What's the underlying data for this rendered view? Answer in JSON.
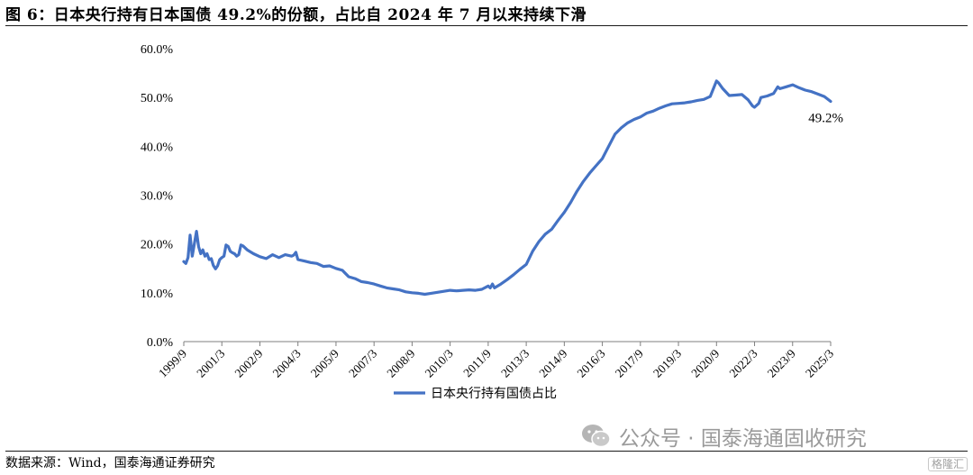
{
  "title": "图 6：日本央行持有日本国债 49.2%的份额，占比自 2024 年 7 月以来持续下滑",
  "source": "数据来源：Wind，国泰海通证券研究",
  "watermark": {
    "text": "公众号 · 国泰海通固收研究",
    "icon": "wechat-icon"
  },
  "corner_logo": "格隆汇",
  "colors": {
    "line": "#4472C4",
    "axis": "#7f7f7f"
  },
  "chart_data": {
    "type": "line",
    "title": "",
    "xlabel": "",
    "ylabel": "",
    "ylim": [
      0,
      60
    ],
    "y_unit": "%",
    "y_ticks": [
      "0.0%",
      "10.0%",
      "20.0%",
      "30.0%",
      "40.0%",
      "50.0%",
      "60.0%"
    ],
    "x_range": [
      "1999/9",
      "2025/3"
    ],
    "x_ticks": [
      "1999/9",
      "2001/3",
      "2002/9",
      "2004/3",
      "2005/9",
      "2007/3",
      "2008/9",
      "2010/3",
      "2011/9",
      "2013/3",
      "2014/9",
      "2016/3",
      "2017/9",
      "2019/3",
      "2020/9",
      "2022/3",
      "2023/9",
      "2025/3"
    ],
    "grid": false,
    "legend": {
      "position": "bottom-center",
      "entries": [
        "日本央行持有国债占比"
      ]
    },
    "annotation": {
      "text": "49.2%",
      "x": "2025/3",
      "y": 49.2
    },
    "series": [
      {
        "name": "日本央行持有国债占比",
        "points": [
          [
            "1999/9",
            16.4
          ],
          [
            "1999/10",
            16.0
          ],
          [
            "1999/11",
            17.2
          ],
          [
            "1999/12",
            21.8
          ],
          [
            "2000/1",
            17.5
          ],
          [
            "2000/2",
            20.0
          ],
          [
            "2000/3",
            22.6
          ],
          [
            "2000/4",
            19.5
          ],
          [
            "2000/5",
            18.0
          ],
          [
            "2000/6",
            18.8
          ],
          [
            "2000/7",
            17.5
          ],
          [
            "2000/8",
            18.0
          ],
          [
            "2000/9",
            16.8
          ],
          [
            "2000/10",
            17.0
          ],
          [
            "2000/11",
            15.6
          ],
          [
            "2000/12",
            14.9
          ],
          [
            "2001/1",
            15.5
          ],
          [
            "2001/2",
            16.8
          ],
          [
            "2001/3",
            17.2
          ],
          [
            "2001/4",
            17.5
          ],
          [
            "2001/5",
            19.8
          ],
          [
            "2001/6",
            19.5
          ],
          [
            "2001/7",
            18.5
          ],
          [
            "2001/8",
            18.2
          ],
          [
            "2001/9",
            18.0
          ],
          [
            "2001/10",
            17.5
          ],
          [
            "2001/11",
            17.8
          ],
          [
            "2001/12",
            19.8
          ],
          [
            "2002/1",
            19.6
          ],
          [
            "2002/3",
            18.8
          ],
          [
            "2002/6",
            18.0
          ],
          [
            "2002/9",
            17.4
          ],
          [
            "2002/12",
            17.0
          ],
          [
            "2003/3",
            17.8
          ],
          [
            "2003/6",
            17.2
          ],
          [
            "2003/9",
            17.8
          ],
          [
            "2003/12",
            17.5
          ],
          [
            "2004/1",
            17.7
          ],
          [
            "2004/2",
            18.3
          ],
          [
            "2004/3",
            16.8
          ],
          [
            "2004/6",
            16.5
          ],
          [
            "2004/9",
            16.2
          ],
          [
            "2004/12",
            16.0
          ],
          [
            "2005/3",
            15.4
          ],
          [
            "2005/6",
            15.5
          ],
          [
            "2005/9",
            15.0
          ],
          [
            "2005/12",
            14.6
          ],
          [
            "2006/3",
            13.3
          ],
          [
            "2006/6",
            12.9
          ],
          [
            "2006/9",
            12.3
          ],
          [
            "2006/12",
            12.1
          ],
          [
            "2007/3",
            11.8
          ],
          [
            "2007/6",
            11.4
          ],
          [
            "2007/9",
            11.0
          ],
          [
            "2007/12",
            10.8
          ],
          [
            "2008/3",
            10.6
          ],
          [
            "2008/6",
            10.2
          ],
          [
            "2008/9",
            10.0
          ],
          [
            "2008/12",
            9.9
          ],
          [
            "2009/3",
            9.7
          ],
          [
            "2009/6",
            9.9
          ],
          [
            "2009/9",
            10.1
          ],
          [
            "2009/12",
            10.3
          ],
          [
            "2010/3",
            10.5
          ],
          [
            "2010/6",
            10.4
          ],
          [
            "2010/9",
            10.5
          ],
          [
            "2010/12",
            10.6
          ],
          [
            "2011/3",
            10.5
          ],
          [
            "2011/6",
            10.7
          ],
          [
            "2011/9",
            11.4
          ],
          [
            "2011/10",
            11.0
          ],
          [
            "2011/11",
            11.8
          ],
          [
            "2011/12",
            11.0
          ],
          [
            "2012/3",
            11.8
          ],
          [
            "2012/6",
            12.7
          ],
          [
            "2012/9",
            13.7
          ],
          [
            "2012/12",
            14.8
          ],
          [
            "2013/3",
            15.8
          ],
          [
            "2013/6",
            18.5
          ],
          [
            "2013/9",
            20.5
          ],
          [
            "2013/12",
            22.0
          ],
          [
            "2014/3",
            23.0
          ],
          [
            "2014/6",
            24.8
          ],
          [
            "2014/9",
            26.5
          ],
          [
            "2014/12",
            28.5
          ],
          [
            "2015/3",
            30.8
          ],
          [
            "2015/6",
            32.8
          ],
          [
            "2015/9",
            34.5
          ],
          [
            "2015/12",
            36.0
          ],
          [
            "2016/3",
            37.5
          ],
          [
            "2016/6",
            40.0
          ],
          [
            "2016/9",
            42.5
          ],
          [
            "2016/12",
            43.8
          ],
          [
            "2017/3",
            44.8
          ],
          [
            "2017/6",
            45.5
          ],
          [
            "2017/9",
            46.0
          ],
          [
            "2017/12",
            46.8
          ],
          [
            "2018/3",
            47.2
          ],
          [
            "2018/6",
            47.8
          ],
          [
            "2018/9",
            48.3
          ],
          [
            "2018/12",
            48.7
          ],
          [
            "2019/3",
            48.8
          ],
          [
            "2019/6",
            48.9
          ],
          [
            "2019/9",
            49.1
          ],
          [
            "2019/12",
            49.4
          ],
          [
            "2020/3",
            49.6
          ],
          [
            "2020/6",
            50.2
          ],
          [
            "2020/9",
            53.4
          ],
          [
            "2020/10",
            53.0
          ],
          [
            "2020/12",
            51.8
          ],
          [
            "2021/3",
            50.4
          ],
          [
            "2021/6",
            50.5
          ],
          [
            "2021/9",
            50.6
          ],
          [
            "2021/12",
            49.5
          ],
          [
            "2022/2",
            48.3
          ],
          [
            "2022/3",
            48.0
          ],
          [
            "2022/5",
            48.8
          ],
          [
            "2022/6",
            50.0
          ],
          [
            "2022/9",
            50.3
          ],
          [
            "2022/12",
            50.8
          ],
          [
            "2023/2",
            52.2
          ],
          [
            "2023/3",
            51.8
          ],
          [
            "2023/6",
            52.2
          ],
          [
            "2023/9",
            52.6
          ],
          [
            "2023/12",
            52.0
          ],
          [
            "2024/3",
            51.5
          ],
          [
            "2024/6",
            51.2
          ],
          [
            "2024/9",
            50.7
          ],
          [
            "2024/12",
            50.2
          ],
          [
            "2025/3",
            49.2
          ]
        ]
      }
    ]
  }
}
